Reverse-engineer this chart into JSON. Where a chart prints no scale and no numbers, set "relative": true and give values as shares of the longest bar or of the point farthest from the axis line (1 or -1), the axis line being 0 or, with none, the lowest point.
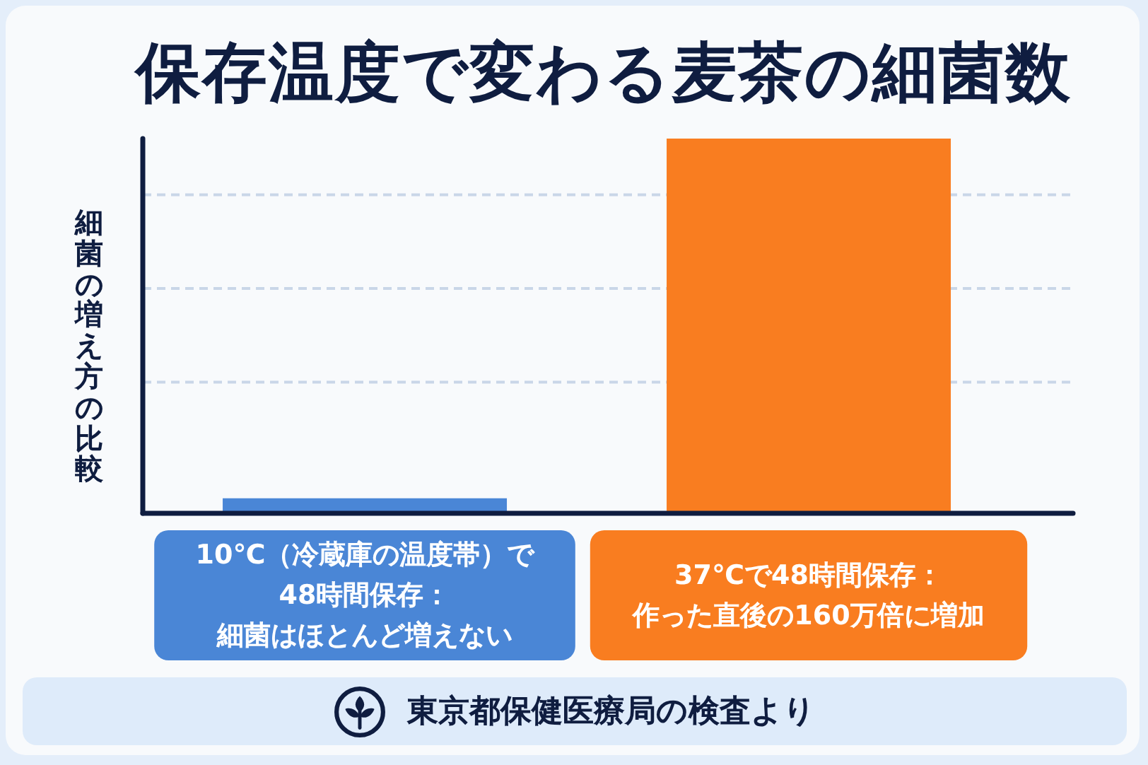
{
  "chart_data": {
    "type": "bar",
    "title": "保存温度で変わる麦茶の細菌数",
    "ylabel": "細菌の増え方の比較",
    "categories": [
      "10℃（冷蔵庫の温度帯）で48時間保存：細菌はほとんど増えない",
      "37℃で48時間保存：作った直後の160万倍に増加"
    ],
    "values": [
      0.04,
      1
    ],
    "colors": [
      "#4a86d6",
      "#f97d20"
    ],
    "relative": true,
    "grid": "y",
    "annotations": [
      "東京都保健医療局の検査より"
    ]
  }
}
